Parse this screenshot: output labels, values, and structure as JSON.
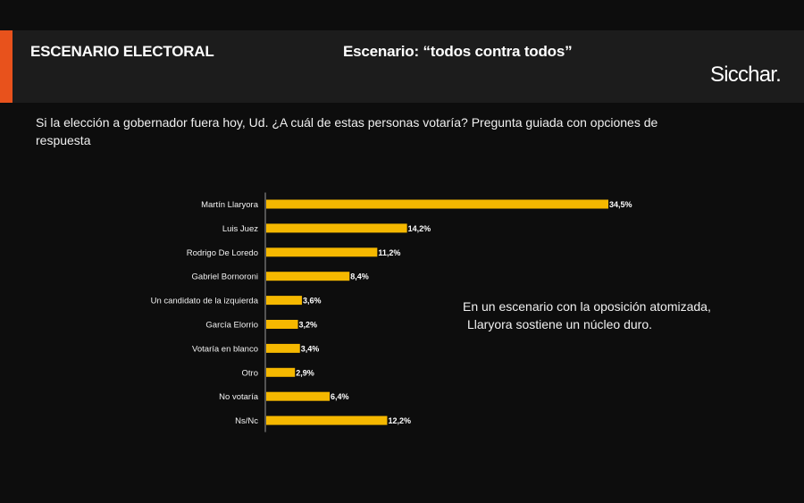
{
  "header": {
    "section_title": "ESCENARIO ELECTORAL",
    "scenario_title": "Escenario: “todos contra todos”",
    "brand": "Sicchar."
  },
  "question": "Si la elección a gobernador fuera hoy, Ud.   ¿A cuál de estas personas votaría? Pregunta guiada con opciones de respuesta",
  "annotation": {
    "line1": "En un escenario con la oposición atomizada,",
    "line2": "Llaryora sostiene un núcleo duro."
  },
  "colors": {
    "bar": "#f5b800",
    "accent": "#e8521c",
    "header_bg": "#1c1c1c",
    "background": "#0d0d0d"
  },
  "chart_data": {
    "type": "bar",
    "orientation": "horizontal",
    "categories": [
      "Martín Llaryora",
      "Luis Juez",
      "Rodrigo De Loredo",
      "Gabriel Bornoroni",
      "Un candidato de la izquierda",
      "García Elorrio",
      "Votaría en blanco",
      "Otro",
      "No votaría",
      "Ns/Nc"
    ],
    "values": [
      34.5,
      14.2,
      11.2,
      8.4,
      3.6,
      3.2,
      3.4,
      2.9,
      6.4,
      12.2
    ],
    "value_labels": [
      "34,5%",
      "14,2%",
      "11,2%",
      "8,4%",
      "3,6%",
      "3,2%",
      "3,4%",
      "2,9%",
      "6,4%",
      "12,2%"
    ],
    "xlim": [
      0,
      34.5
    ],
    "title": "",
    "xlabel": "",
    "ylabel": "",
    "grid": false,
    "legend": "none"
  }
}
